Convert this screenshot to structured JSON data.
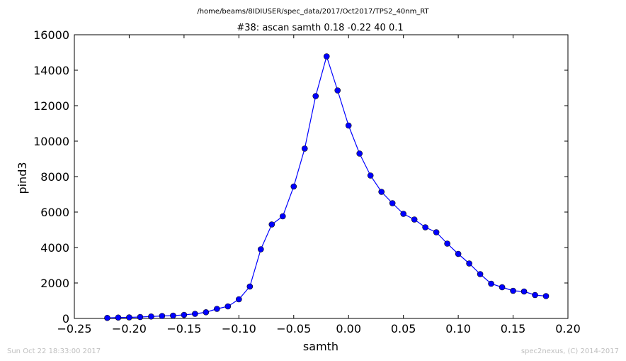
{
  "chart_data": {
    "type": "line",
    "file_path": "/home/beams/8IDIUSER/spec_data/2017/Oct2017/TPS2_40nm_RT",
    "title": "#38: ascan  samth 0.18 -0.22  40 0.1",
    "xlabel": "samth",
    "ylabel": "pind3",
    "xlim": [
      -0.25,
      0.2
    ],
    "ylim": [
      0,
      16000
    ],
    "x_ticks": [
      -0.25,
      -0.2,
      -0.15,
      -0.1,
      -0.05,
      0.0,
      0.05,
      0.1,
      0.15,
      0.2
    ],
    "x_tick_labels": [
      "−0.25",
      "−0.20",
      "−0.15",
      "−0.10",
      "−0.05",
      "0.00",
      "0.05",
      "0.10",
      "0.15",
      "0.20"
    ],
    "y_ticks": [
      0,
      2000,
      4000,
      6000,
      8000,
      10000,
      12000,
      14000,
      16000
    ],
    "y_tick_labels": [
      "0",
      "2000",
      "4000",
      "6000",
      "8000",
      "10000",
      "12000",
      "14000",
      "16000"
    ],
    "grid": false,
    "color": "#0000ff",
    "series": [
      {
        "x": [
          -0.22,
          -0.21,
          -0.2,
          -0.19,
          -0.18,
          -0.17,
          -0.16,
          -0.15,
          -0.14,
          -0.13,
          -0.12,
          -0.11,
          -0.1,
          -0.09,
          -0.08,
          -0.07,
          -0.06,
          -0.05,
          -0.04,
          -0.03,
          -0.02,
          -0.01,
          0.0,
          0.01,
          0.02,
          0.03,
          0.04,
          0.05,
          0.06,
          0.07,
          0.08,
          0.09,
          0.1,
          0.11,
          0.12,
          0.13,
          0.14,
          0.15,
          0.16,
          0.17,
          0.18
        ],
        "y": [
          30,
          50,
          60,
          80,
          110,
          140,
          160,
          200,
          260,
          350,
          540,
          680,
          1080,
          1800,
          3900,
          5300,
          5760,
          7440,
          9580,
          12540,
          14780,
          12860,
          10880,
          9300,
          8060,
          7140,
          6500,
          5900,
          5580,
          5140,
          4860,
          4220,
          3640,
          3100,
          2500,
          1960,
          1760,
          1560,
          1520,
          1320,
          1260
        ]
      }
    ]
  },
  "footer": {
    "timestamp": "Sun Oct 22 18:33:00 2017",
    "credit": "spec2nexus, (C) 2014-2017"
  }
}
